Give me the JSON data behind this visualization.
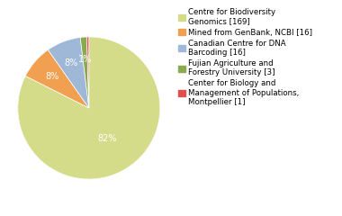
{
  "labels": [
    "Centre for Biodiversity\nGenomics [169]",
    "Mined from GenBank, NCBI [16]",
    "Canadian Centre for DNA\nBarcoding [16]",
    "Fujian Agriculture and\nForestry University [3]",
    "Center for Biology and\nManagement of Populations,\nMontpellier [1]"
  ],
  "values": [
    169,
    16,
    16,
    3,
    1
  ],
  "colors": [
    "#d4dc8a",
    "#f0a050",
    "#a0b8d8",
    "#8aaa50",
    "#e05050"
  ],
  "startangle": 90,
  "background_color": "#ffffff",
  "pct_fontsize": 7,
  "legend_fontsize": 6.2
}
